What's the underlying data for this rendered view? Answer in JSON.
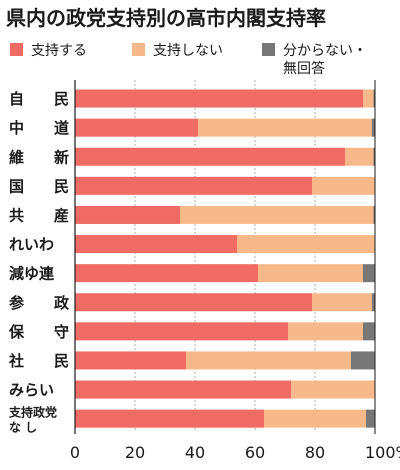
{
  "chart_data": {
    "type": "bar",
    "orientation": "horizontal",
    "stacked": true,
    "title": "県内の政党支持別の高市内閣支持率",
    "categories": [
      [
        "自",
        "民"
      ],
      [
        "中",
        "道"
      ],
      [
        "維",
        "新"
      ],
      [
        "国",
        "民"
      ],
      [
        "共",
        "産"
      ],
      [
        "れいわ"
      ],
      [
        "減ゆ連"
      ],
      [
        "参",
        "政"
      ],
      [
        "保",
        "守"
      ],
      [
        "社",
        "民"
      ],
      [
        "みらい"
      ],
      [
        "支持政党",
        "な し"
      ]
    ],
    "series": [
      {
        "name": "支持する",
        "color": "#ef6b63",
        "values": [
          96,
          41,
          90,
          79,
          35,
          54,
          61,
          79,
          71,
          37,
          72,
          63
        ]
      },
      {
        "name": "支持しない",
        "color": "#f8b98a",
        "values": [
          3.5,
          58,
          9.5,
          21,
          64.5,
          46,
          35,
          20,
          25,
          55,
          28,
          34
        ]
      },
      {
        "name": "分からない・\n無回答",
        "color": "#777777",
        "values": [
          0.5,
          1,
          0.5,
          0,
          0.5,
          0,
          4,
          1,
          4,
          8,
          0,
          3
        ]
      }
    ],
    "x_ticks": [
      "0",
      "20",
      "40",
      "60",
      "80",
      "100%"
    ],
    "xlim": [
      0,
      100
    ],
    "legend": "top"
  }
}
